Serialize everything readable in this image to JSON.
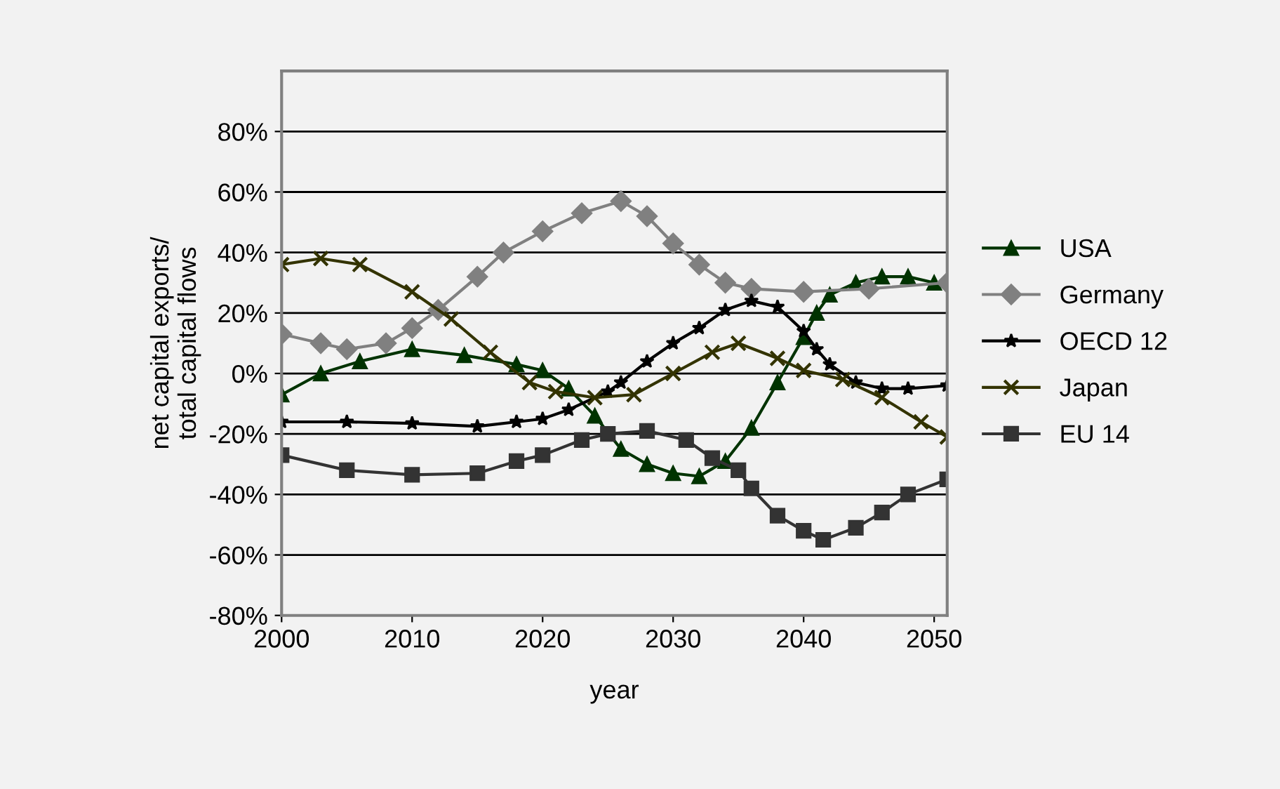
{
  "chart_data": {
    "type": "line",
    "xlabel": "year",
    "ylabel": "net capital exports/\ntotal capital flows",
    "xlim": [
      2000,
      2051
    ],
    "xticks": [
      2000,
      2010,
      2020,
      2030,
      2040,
      2050
    ],
    "ylim": [
      -80,
      100
    ],
    "yticks": [
      {
        "value": -80,
        "label": "-80%"
      },
      {
        "value": -60,
        "label": "-60%"
      },
      {
        "value": -40,
        "label": "-40%"
      },
      {
        "value": -20,
        "label": "-20%"
      },
      {
        "value": 0,
        "label": "0%"
      },
      {
        "value": 20,
        "label": "20%"
      },
      {
        "value": 40,
        "label": "40%"
      },
      {
        "value": 60,
        "label": "60%"
      },
      {
        "value": 80,
        "label": "80%"
      }
    ],
    "grid": "y",
    "legend": "right",
    "line_style": "solid",
    "series": [
      {
        "name": "USA",
        "color": "#003300",
        "marker": "triangle",
        "x": [
          2000,
          2003,
          2006,
          2010,
          2014,
          2018,
          2020,
          2022,
          2024,
          2026,
          2028,
          2030,
          2032,
          2034,
          2036,
          2038,
          2040,
          2041,
          2042,
          2044,
          2046,
          2048,
          2050
        ],
        "values": [
          -7,
          0,
          4,
          8,
          6,
          3,
          1,
          -5,
          -14,
          -25,
          -30,
          -33,
          -34,
          -29,
          -18,
          -3,
          12,
          20,
          26,
          30,
          32,
          32,
          30
        ]
      },
      {
        "name": "Germany",
        "color": "#808080",
        "marker": "diamond",
        "x": [
          2000,
          2003,
          2005,
          2008,
          2010,
          2012,
          2015,
          2017,
          2020,
          2023,
          2026,
          2028,
          2030,
          2032,
          2034,
          2036,
          2040,
          2045,
          2051
        ],
        "values": [
          13,
          10,
          8,
          10,
          15,
          21,
          32,
          40,
          47,
          53,
          57,
          52,
          43,
          36,
          30,
          28,
          27,
          28,
          30
        ]
      },
      {
        "name": "OECD 12",
        "color": "#000000",
        "marker": "star",
        "x": [
          2000,
          2005,
          2010,
          2015,
          2018,
          2020,
          2022,
          2025,
          2026,
          2028,
          2030,
          2032,
          2034,
          2036,
          2038,
          2040,
          2041,
          2042,
          2044,
          2046,
          2048,
          2051
        ],
        "values": [
          -16,
          -16,
          -16.5,
          -17.5,
          -16,
          -15,
          -12,
          -6,
          -3,
          4,
          10,
          15,
          21,
          24,
          22,
          14,
          8,
          3,
          -3,
          -5,
          -5,
          -4
        ]
      },
      {
        "name": "Japan",
        "color": "#333300",
        "marker": "cross",
        "x": [
          2000,
          2003,
          2006,
          2010,
          2013,
          2016,
          2019,
          2021,
          2024,
          2027,
          2030,
          2033,
          2035,
          2038,
          2040,
          2043,
          2046,
          2049,
          2051
        ],
        "values": [
          36,
          38,
          36,
          27,
          18,
          7,
          -3,
          -6,
          -8,
          -7,
          0,
          7,
          10,
          5,
          1,
          -2,
          -8,
          -16,
          -21
        ]
      },
      {
        "name": "EU 14",
        "color": "#333333",
        "marker": "square",
        "x": [
          2000,
          2005,
          2010,
          2015,
          2018,
          2020,
          2023,
          2025,
          2028,
          2031,
          2033,
          2035,
          2036,
          2038,
          2040,
          2041.5,
          2044,
          2046,
          2048,
          2051
        ],
        "values": [
          -27,
          -32,
          -33.5,
          -33,
          -29,
          -27,
          -22,
          -20,
          -19,
          -22,
          -28,
          -32,
          -38,
          -47,
          -52,
          -55,
          -51,
          -46,
          -40,
          -35
        ]
      }
    ]
  }
}
